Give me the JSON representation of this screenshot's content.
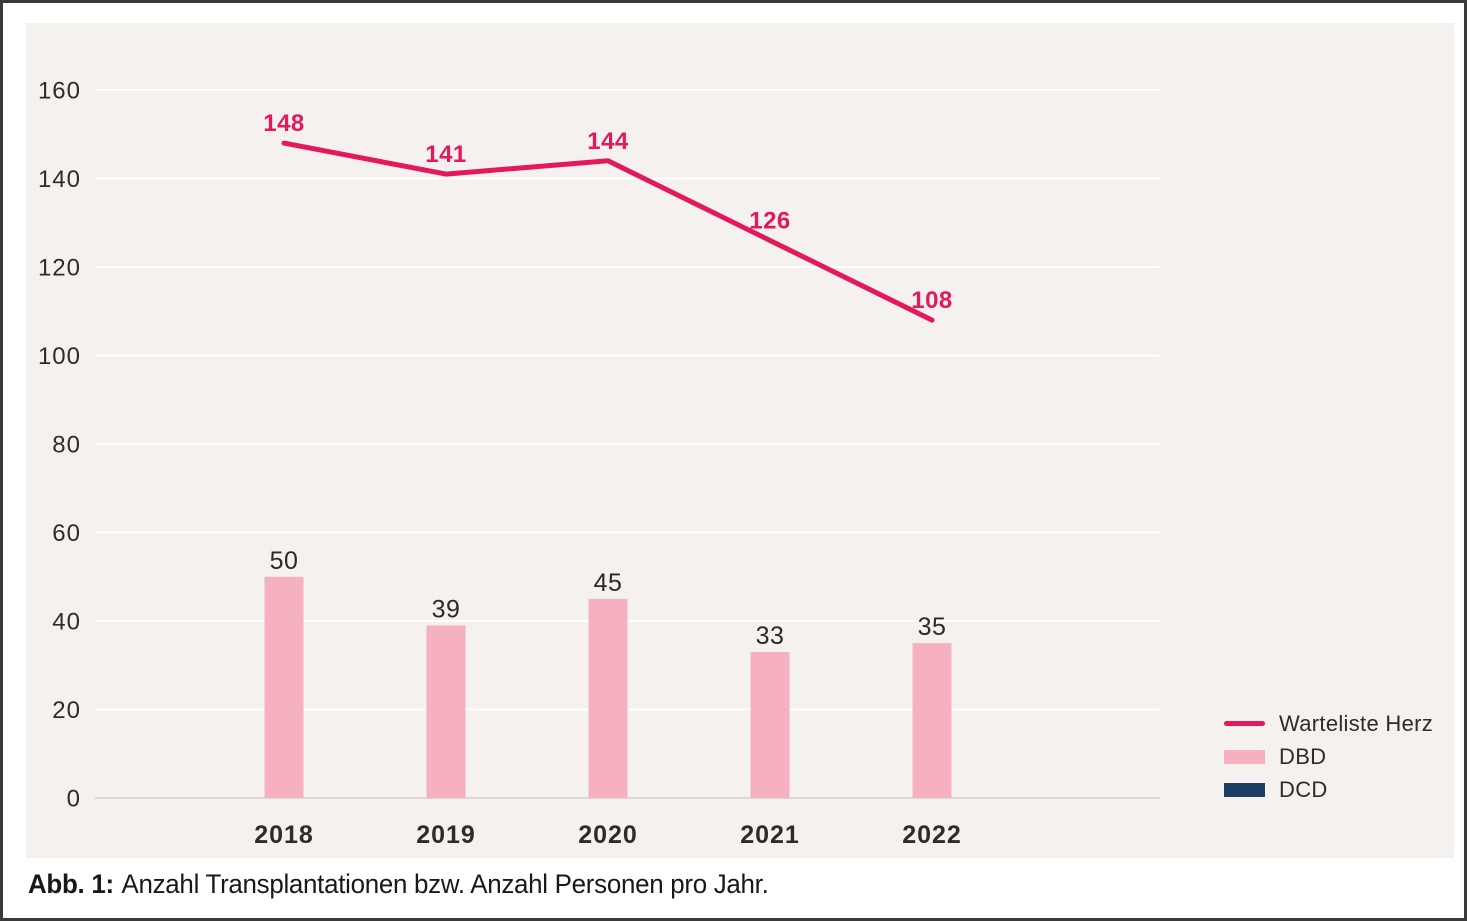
{
  "figure": {
    "caption_label": "Abb. 1:",
    "caption_text": "Anzahl Transplantationen bzw. Anzahl Personen pro Jahr."
  },
  "chart_data": {
    "type": "line+bar",
    "categories": [
      "2018",
      "2019",
      "2020",
      "2021",
      "2022"
    ],
    "series": [
      {
        "name": "Warteliste Herz",
        "type": "line",
        "color": "#e4185c",
        "values": [
          148,
          141,
          144,
          126,
          108
        ]
      },
      {
        "name": "DBD",
        "type": "bar",
        "color": "#f6b1c0",
        "values": [
          50,
          39,
          45,
          33,
          35
        ]
      },
      {
        "name": "DCD",
        "type": "bar",
        "color": "#1e3d62",
        "values": [
          0,
          0,
          0,
          0,
          0
        ]
      }
    ],
    "title": "",
    "xlabel": "",
    "ylabel": "",
    "ylim": [
      0,
      160
    ],
    "ytick_step": 20,
    "grid": "horizontal",
    "legend_position": "bottom-right",
    "colors": {
      "plot_background": "#f4f1ee",
      "gridline": "#ffffff",
      "zero_line": "#ded8d1",
      "axis_text": "#2e2c29",
      "bar_label_text": "#2b2a28",
      "frame_border": "#3a3a3a"
    }
  }
}
